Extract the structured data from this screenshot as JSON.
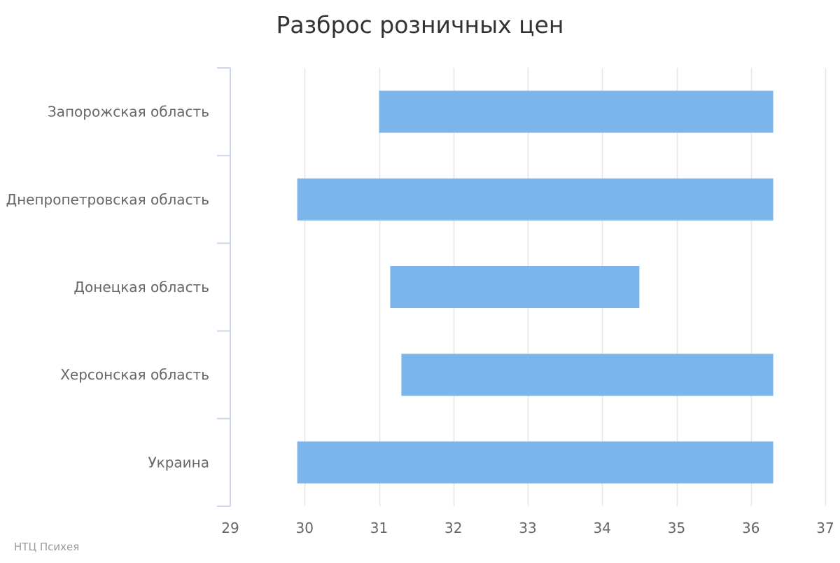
{
  "chart_data": {
    "type": "bar",
    "orientation": "horizontal",
    "range_bars": true,
    "title": "Разброс розничных цен",
    "xlabel": "",
    "ylabel": "",
    "xlim": [
      29,
      37
    ],
    "x_ticks": [
      29,
      30,
      31,
      32,
      33,
      34,
      35,
      36,
      37
    ],
    "grid": true,
    "categories": [
      "Запорожская область",
      "Днепропетровская область",
      "Донецкая область",
      "Херсонская область",
      "Украина"
    ],
    "ranges": [
      [
        31.0,
        36.3
      ],
      [
        29.9,
        36.3
      ],
      [
        31.15,
        34.5
      ],
      [
        31.3,
        36.3
      ],
      [
        29.9,
        36.3
      ]
    ],
    "bar_color": "#7cb5ec",
    "grid_color": "#e6e6e6",
    "axis_color": "#ccd6eb"
  },
  "credits": "НТЦ Психея"
}
